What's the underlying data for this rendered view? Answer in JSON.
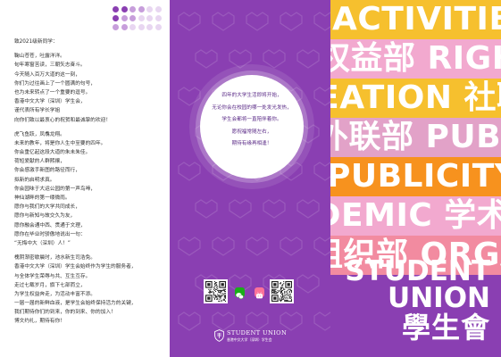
{
  "letter": {
    "greeting": "致2021级新同学：",
    "paragraph1": [
      "鞠山苍苍，吐露洋洋。",
      "旬年寒窗苦读，三朝矢志奋斗。",
      "今天随入百万大道的这一刻，",
      "你们为过往画上了一个圆满的句号，",
      "也为未来转点了一个重要的逗号。",
      "香港中文大学（深圳）学生会，",
      "谨代表所有学长学姐",
      "向你们致以最衷心的祝贺和最诚挚的欢迎！"
    ],
    "paragraph2": [
      "虎飞鱼跃，凤翥龙翔。",
      "未来的教年，将是你人生中至要的四年。",
      "你会重亿起这段大道的朱未朱佳。",
      "荷短爱献的人群熙攘，",
      "你会感激手新图的路径而行，",
      "拟新的启明求真。",
      "你会园味于大运公园的第一声鸟啼，",
      "神仙湖畔的第一缕微雨。",
      "愿你与我们的大学共同成长，",
      "愿你与新知与故交久为友，",
      "愿你融会通中西、贯通于文理，",
      "愿你在毕业时骄傲地说出一句：",
      "“无悔中大（深圳）人！”"
    ],
    "paragraph3": [
      "槐阴渐密歇晨时，池水新生司浩免。",
      "香港中文大学（深圳）学生会始终作为学生的服务者，",
      "与全体学生荣辱与共、互生互存。",
      "走过七载岁月，旗下七部而立，",
      "为学生权益奔走，为活动丰富不添。",
      "一届一届的新鲜血液，是学生会始终保持活力的关键，",
      "我们期待你们的到来，你的到来、你的加入！",
      "博文约礼，期待有你！"
    ]
  },
  "circle_message": [
    "四年的大学生活即将开始，",
    "无论你会在校园的哪一处发光发热，",
    "学生会都将一直陪伴着你。",
    "愿祝福常随左右，",
    "期待有缘再相逢！"
  ],
  "logo": {
    "name_en": "STUDENT UNION",
    "name_cn": "香港中文大学（深圳）学生会"
  },
  "bands": [
    {
      "text": "ACTIVITIES",
      "color": "#f6c02e"
    },
    {
      "text": "权益部 RIGHTS",
      "color": "#f2a9cf"
    },
    {
      "text": "CREATION 社联部",
      "color": "#f6c02e"
    },
    {
      "text": "外联部 PUBLIC",
      "color": "#e2a2c8"
    },
    {
      "text": "PUBLICITY",
      "color": "#f7921e"
    },
    {
      "text": "ACADEMIC 学术部",
      "color": "#f2a9cf"
    },
    {
      "text": "组织部 ORGANIZATION",
      "color": "#f28ba0"
    }
  ],
  "title": {
    "line1": "STUDENT",
    "line2": "UNION",
    "cn": "學生會"
  },
  "colors": {
    "purple": "#8a3fb2",
    "dots": [
      "#8a3fb2",
      "#c79edb",
      "#e8d6f1"
    ]
  }
}
